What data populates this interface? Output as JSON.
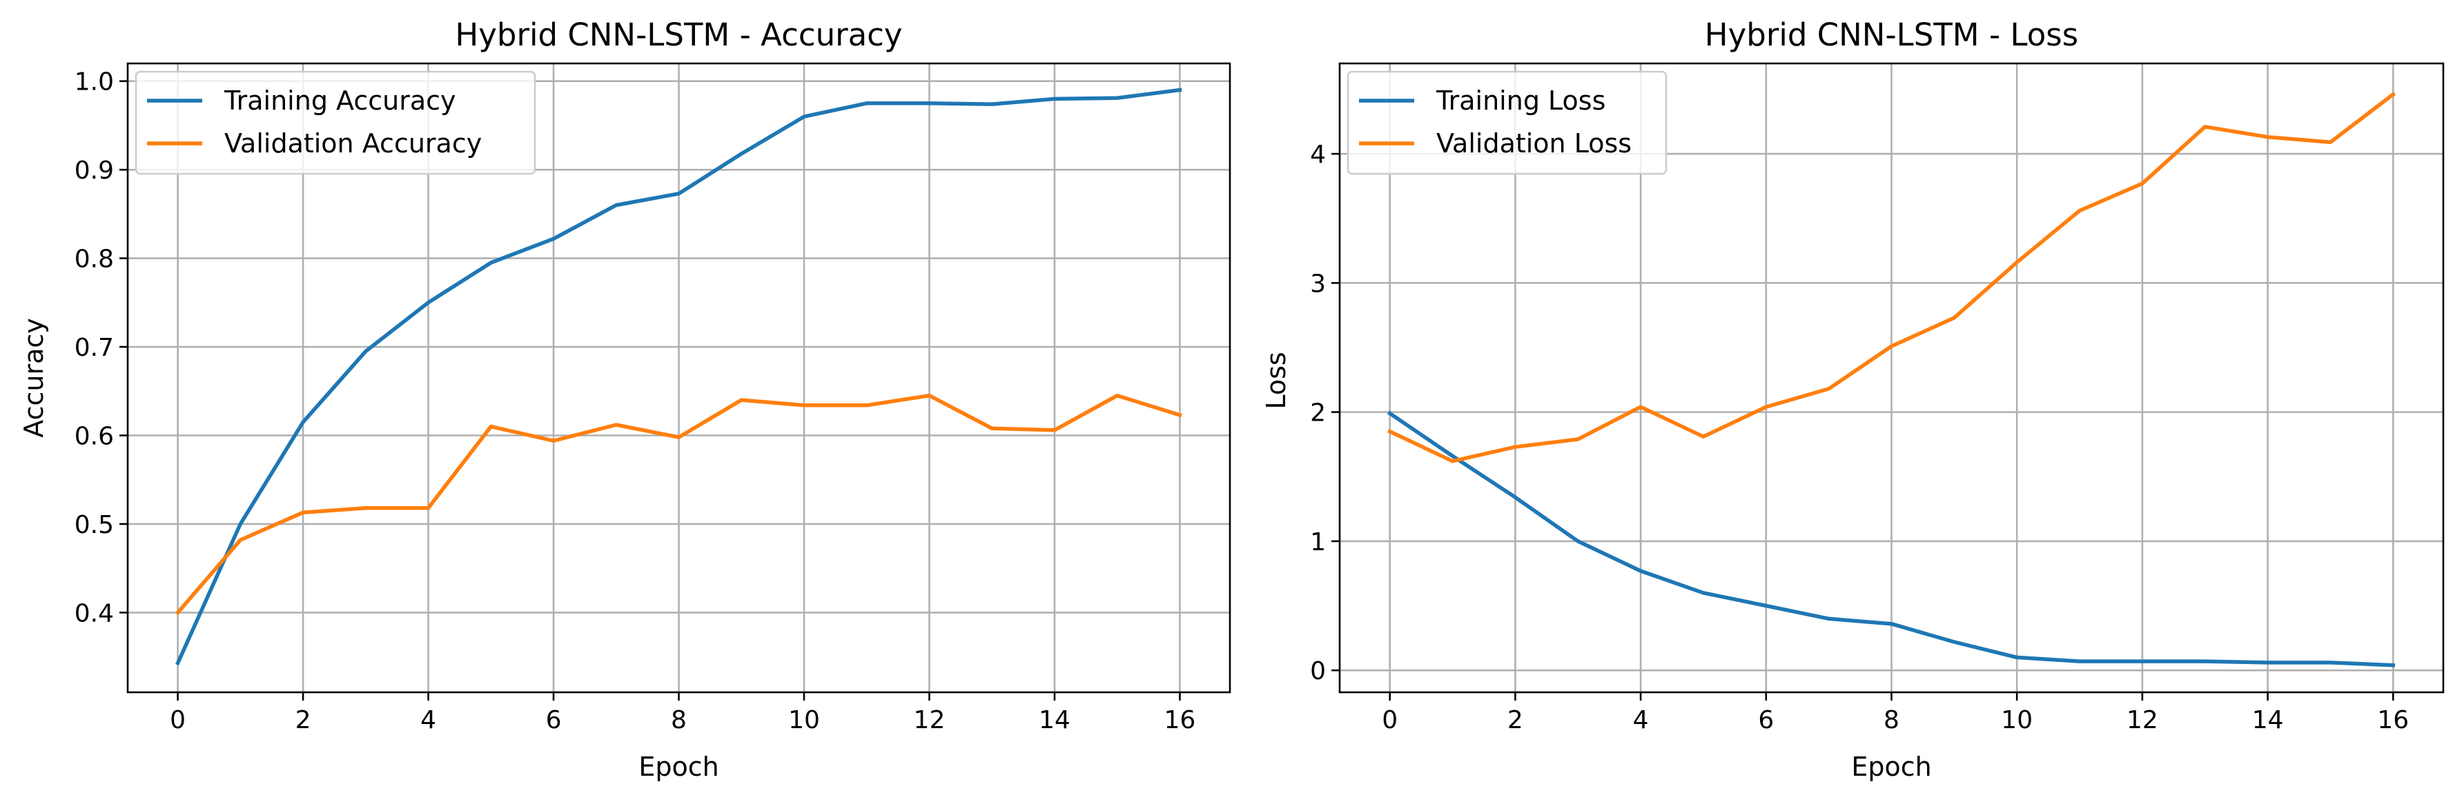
{
  "colors": {
    "series_1": "#1f77b4",
    "series_2": "#ff7f0e",
    "grid": "#b0b0b0"
  },
  "chart_data": [
    {
      "type": "line",
      "title": "Hybrid CNN-LSTM - Accuracy",
      "xlabel": "Epoch",
      "ylabel": "Accuracy",
      "xlim": [
        -0.8,
        16.8
      ],
      "ylim": [
        0.31,
        1.02
      ],
      "xticks": [
        0,
        2,
        4,
        6,
        8,
        10,
        12,
        14,
        16
      ],
      "xtick_labels": [
        "0",
        "2",
        "4",
        "6",
        "8",
        "10",
        "12",
        "14",
        "16"
      ],
      "yticks": [
        0.4,
        0.5,
        0.6,
        0.7,
        0.8,
        0.9,
        1.0
      ],
      "ytick_labels": [
        "0.4",
        "0.5",
        "0.6",
        "0.7",
        "0.8",
        "0.9",
        "1.0"
      ],
      "grid": true,
      "legend": "upper-left",
      "x": [
        0,
        1,
        2,
        3,
        4,
        5,
        6,
        7,
        8,
        9,
        10,
        11,
        12,
        13,
        14,
        15,
        16
      ],
      "series": [
        {
          "name": "Training Accuracy",
          "color": "#1f77b4",
          "values": [
            0.343,
            0.5,
            0.615,
            0.695,
            0.75,
            0.795,
            0.822,
            0.86,
            0.873,
            0.918,
            0.96,
            0.975,
            0.975,
            0.974,
            0.98,
            0.981,
            0.99
          ]
        },
        {
          "name": "Validation Accuracy",
          "color": "#ff7f0e",
          "values": [
            0.4,
            0.482,
            0.513,
            0.518,
            0.518,
            0.61,
            0.594,
            0.612,
            0.598,
            0.64,
            0.634,
            0.634,
            0.645,
            0.608,
            0.606,
            0.645,
            0.623
          ]
        }
      ]
    },
    {
      "type": "line",
      "title": "Hybrid CNN-LSTM - Loss",
      "xlabel": "Epoch",
      "ylabel": "Loss",
      "xlim": [
        -0.8,
        16.8
      ],
      "ylim": [
        -0.17,
        4.7
      ],
      "xticks": [
        0,
        2,
        4,
        6,
        8,
        10,
        12,
        14,
        16
      ],
      "xtick_labels": [
        "0",
        "2",
        "4",
        "6",
        "8",
        "10",
        "12",
        "14",
        "16"
      ],
      "yticks": [
        0,
        1,
        2,
        3,
        4
      ],
      "ytick_labels": [
        "0",
        "1",
        "2",
        "3",
        "4"
      ],
      "grid": true,
      "legend": "upper-left",
      "x": [
        0,
        1,
        2,
        3,
        4,
        5,
        6,
        7,
        8,
        9,
        10,
        11,
        12,
        13,
        14,
        15,
        16
      ],
      "series": [
        {
          "name": "Training Loss",
          "color": "#1f77b4",
          "values": [
            1.99,
            1.66,
            1.34,
            1.0,
            0.77,
            0.6,
            0.5,
            0.4,
            0.36,
            0.22,
            0.1,
            0.07,
            0.07,
            0.07,
            0.06,
            0.06,
            0.04
          ]
        },
        {
          "name": "Validation Loss",
          "color": "#ff7f0e",
          "values": [
            1.85,
            1.62,
            1.73,
            1.79,
            2.04,
            1.81,
            2.04,
            2.18,
            2.51,
            2.73,
            3.16,
            3.56,
            3.77,
            4.21,
            4.13,
            4.09,
            4.46
          ]
        }
      ]
    }
  ]
}
